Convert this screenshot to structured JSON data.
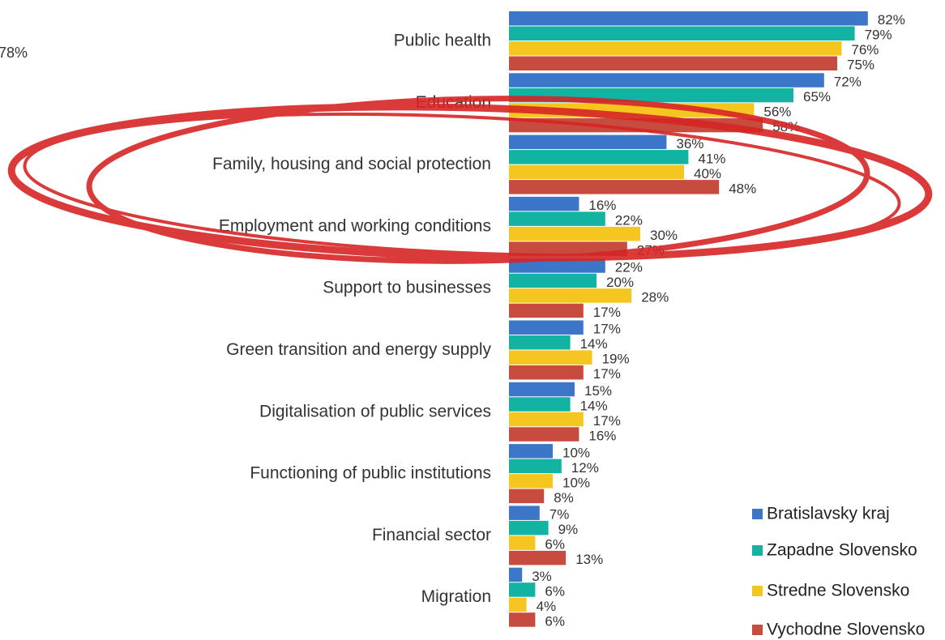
{
  "chart_data": {
    "type": "bar",
    "orientation": "horizontal",
    "annotation": "78%",
    "categories": [
      "Public health",
      "Education",
      "Family, housing and social protection",
      "Employment and working conditions",
      "Support to businesses",
      "Green transition and energy supply",
      "Digitalisation of public services",
      "Functioning of public institutions",
      "Financial sector",
      "Migration"
    ],
    "series": [
      {
        "name": "Bratislavsky kraj",
        "color": "#3b76c9",
        "values": [
          82,
          72,
          36,
          16,
          22,
          17,
          15,
          10,
          7,
          3
        ],
        "value_labels": [
          "82%",
          "72%",
          "36%",
          "16%",
          "22%",
          "17%",
          "15%",
          "10%",
          "7%",
          "3%"
        ]
      },
      {
        "name": "Zapadne Slovensko",
        "color": "#13b3a4",
        "values": [
          79,
          65,
          41,
          22,
          20,
          14,
          14,
          12,
          9,
          6
        ],
        "value_labels": [
          "79%",
          "65%",
          "41%",
          "22%",
          "20%",
          "14%",
          "14%",
          "12%",
          "9%",
          "6%"
        ]
      },
      {
        "name": "Stredne Slovensko",
        "color": "#f5c61f",
        "values": [
          76,
          56,
          40,
          30,
          28,
          19,
          17,
          10,
          6,
          4
        ],
        "value_labels": [
          "76%",
          "56%",
          "40%",
          "30%",
          "28%",
          "19%",
          "17%",
          "10%",
          "6%",
          "4%"
        ]
      },
      {
        "name": "Vychodne Slovensko",
        "color": "#c84b3f",
        "values": [
          75,
          58,
          48,
          27,
          17,
          17,
          16,
          8,
          13,
          6
        ],
        "value_labels": [
          "75%",
          "58%",
          "48%",
          "27%",
          "17%",
          "17%",
          "16%",
          "8%",
          "13%",
          "6%"
        ]
      }
    ]
  }
}
